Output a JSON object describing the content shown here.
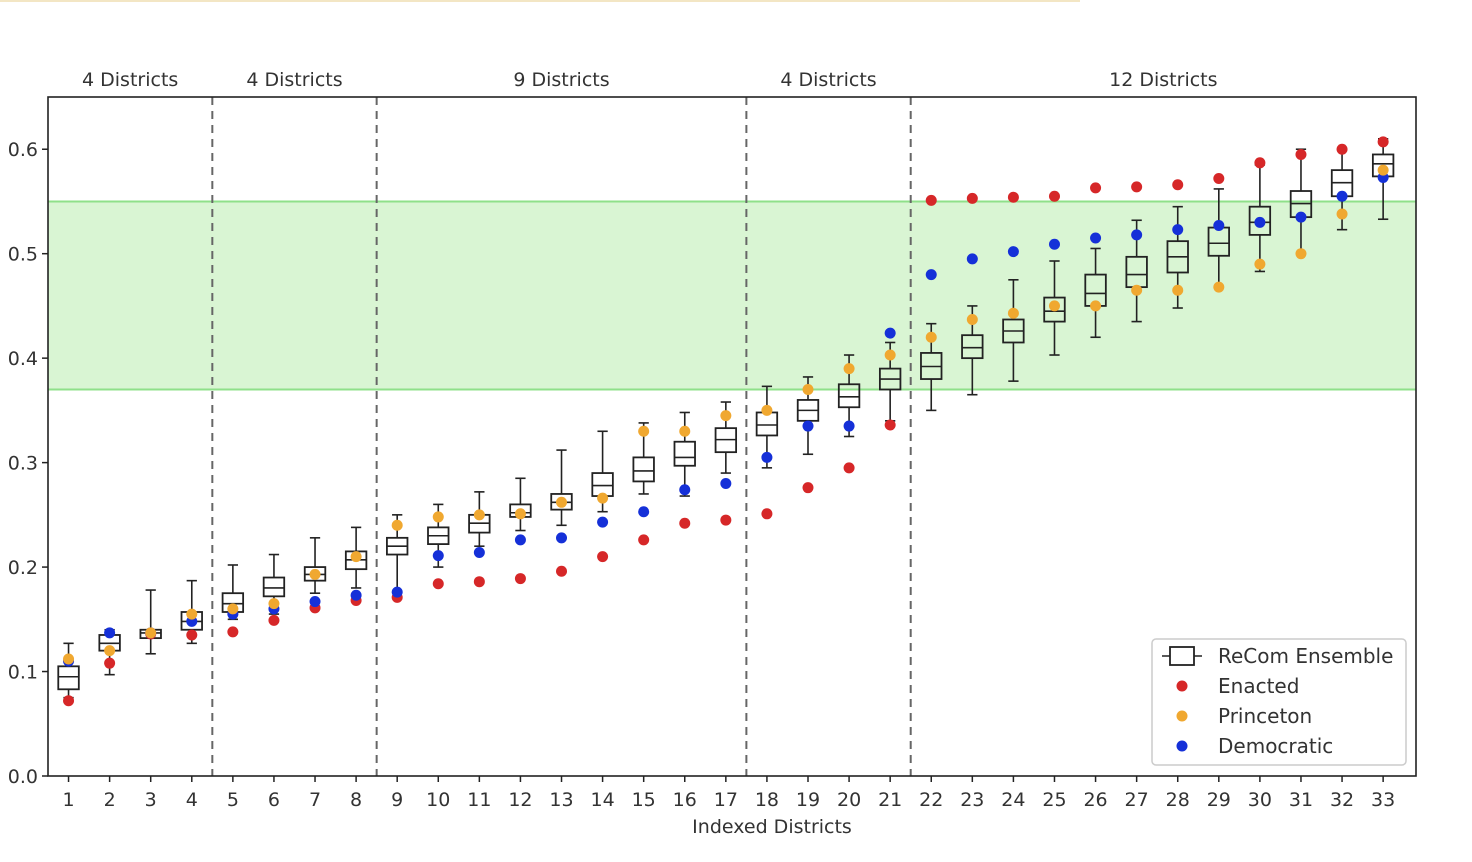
{
  "chart_data": {
    "type": "box",
    "title": "",
    "xlabel": "Indexed Districts",
    "ylabel": "",
    "ylim": [
      0.0,
      0.65
    ],
    "yticks": [
      "0.0",
      "0.1",
      "0.2",
      "0.3",
      "0.4",
      "0.5",
      "0.6"
    ],
    "categories": [
      "1",
      "2",
      "3",
      "4",
      "5",
      "6",
      "7",
      "8",
      "9",
      "10",
      "11",
      "12",
      "13",
      "14",
      "15",
      "16",
      "17",
      "18",
      "19",
      "20",
      "21",
      "22",
      "23",
      "24",
      "25",
      "26",
      "27",
      "28",
      "29",
      "30",
      "31",
      "32",
      "33"
    ],
    "shaded_band": {
      "low": 0.37,
      "high": 0.55,
      "color": "#d9f5d3",
      "edge_color": "#8fe08a"
    },
    "groups": [
      {
        "label": "4 Districts",
        "start": 1,
        "end": 4
      },
      {
        "label": "4 Districts",
        "start": 5,
        "end": 8
      },
      {
        "label": "9 Districts",
        "start": 9,
        "end": 17
      },
      {
        "label": "4 Districts",
        "start": 18,
        "end": 21
      },
      {
        "label": "12 Districts",
        "start": 22,
        "end": 33
      }
    ],
    "boxes": {
      "name": "ReCom Ensemble",
      "whisker_low": [
        0.075,
        0.097,
        0.117,
        0.127,
        0.15,
        0.155,
        0.175,
        0.18,
        0.17,
        0.2,
        0.22,
        0.235,
        0.24,
        0.253,
        0.27,
        0.268,
        0.29,
        0.295,
        0.308,
        0.325,
        0.34,
        0.35,
        0.365,
        0.378,
        0.403,
        0.42,
        0.435,
        0.448,
        0.468,
        0.483,
        0.5,
        0.523,
        0.533
      ],
      "q1": [
        0.083,
        0.12,
        0.132,
        0.14,
        0.157,
        0.172,
        0.187,
        0.198,
        0.212,
        0.222,
        0.233,
        0.248,
        0.255,
        0.268,
        0.282,
        0.297,
        0.31,
        0.326,
        0.34,
        0.353,
        0.37,
        0.38,
        0.4,
        0.415,
        0.435,
        0.45,
        0.468,
        0.482,
        0.498,
        0.518,
        0.535,
        0.555,
        0.574
      ],
      "median": [
        0.095,
        0.127,
        0.137,
        0.148,
        0.165,
        0.18,
        0.193,
        0.207,
        0.22,
        0.23,
        0.242,
        0.252,
        0.262,
        0.278,
        0.292,
        0.305,
        0.322,
        0.336,
        0.35,
        0.363,
        0.38,
        0.392,
        0.41,
        0.426,
        0.445,
        0.462,
        0.48,
        0.497,
        0.51,
        0.53,
        0.548,
        0.568,
        0.586
      ],
      "q3": [
        0.105,
        0.135,
        0.14,
        0.157,
        0.175,
        0.19,
        0.2,
        0.215,
        0.228,
        0.238,
        0.25,
        0.26,
        0.27,
        0.29,
        0.305,
        0.32,
        0.333,
        0.348,
        0.36,
        0.375,
        0.39,
        0.405,
        0.422,
        0.437,
        0.458,
        0.48,
        0.497,
        0.512,
        0.525,
        0.545,
        0.56,
        0.58,
        0.595
      ],
      "whisker_high": [
        0.127,
        0.14,
        0.178,
        0.187,
        0.202,
        0.212,
        0.228,
        0.238,
        0.25,
        0.26,
        0.272,
        0.285,
        0.312,
        0.33,
        0.338,
        0.348,
        0.358,
        0.373,
        0.382,
        0.403,
        0.415,
        0.433,
        0.45,
        0.475,
        0.493,
        0.505,
        0.532,
        0.545,
        0.562,
        0.585,
        0.6,
        0.6,
        0.61
      ]
    },
    "series": [
      {
        "name": "Enacted",
        "color": "#d62728",
        "values": [
          0.072,
          0.108,
          0.136,
          0.135,
          0.138,
          0.149,
          0.161,
          0.168,
          0.171,
          0.184,
          0.186,
          0.189,
          0.196,
          0.21,
          0.226,
          0.242,
          0.245,
          0.251,
          0.276,
          0.295,
          0.336,
          0.551,
          0.553,
          0.554,
          0.555,
          0.563,
          0.564,
          0.566,
          0.572,
          0.587,
          0.595,
          0.6,
          0.607
        ]
      },
      {
        "name": "Princeton",
        "color": "#f0a830",
        "values": [
          0.112,
          0.12,
          0.137,
          0.155,
          0.16,
          0.165,
          0.193,
          0.21,
          0.24,
          0.248,
          0.25,
          0.251,
          0.262,
          0.266,
          0.33,
          0.33,
          0.345,
          0.35,
          0.37,
          0.39,
          0.403,
          0.42,
          0.437,
          0.443,
          0.45,
          0.45,
          0.465,
          0.465,
          0.468,
          0.49,
          0.5,
          0.538,
          0.58
        ]
      },
      {
        "name": "Democratic",
        "color": "#1530d8",
        "values": [
          0.11,
          0.137,
          0.137,
          0.148,
          0.155,
          0.16,
          0.167,
          0.173,
          0.176,
          0.211,
          0.214,
          0.226,
          0.228,
          0.243,
          0.253,
          0.274,
          0.28,
          0.305,
          0.335,
          0.335,
          0.424,
          0.48,
          0.495,
          0.502,
          0.509,
          0.515,
          0.518,
          0.523,
          0.527,
          0.53,
          0.535,
          0.555,
          0.573
        ]
      }
    ],
    "legend": {
      "position": "lower-right",
      "entries": [
        "ReCom Ensemble",
        "Enacted",
        "Princeton",
        "Democratic"
      ]
    }
  }
}
